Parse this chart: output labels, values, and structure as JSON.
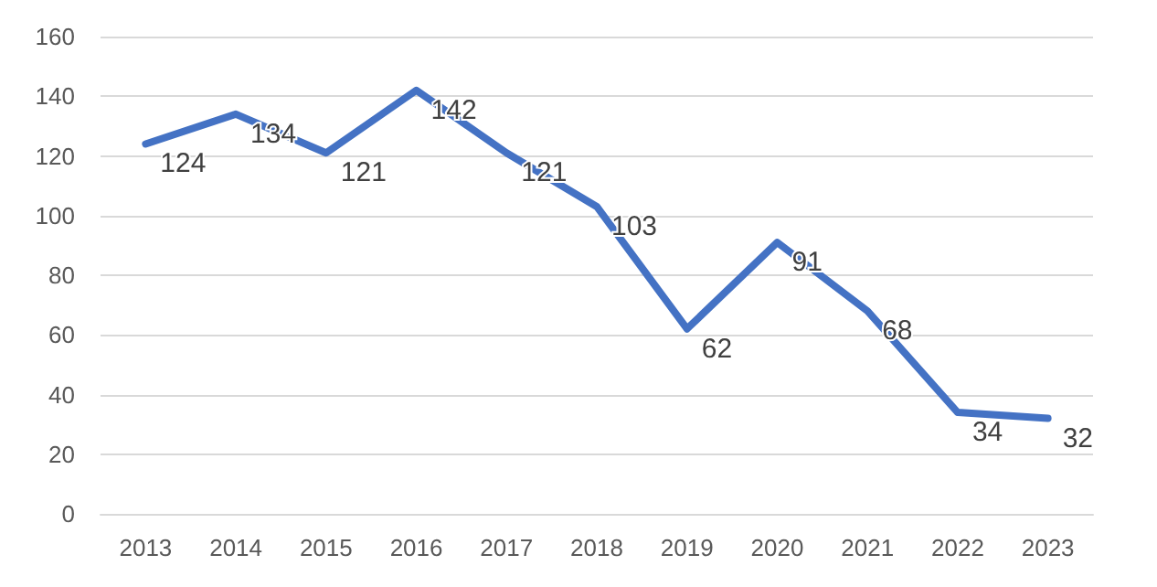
{
  "chart_data": {
    "type": "line",
    "categories": [
      "2013",
      "2014",
      "2015",
      "2016",
      "2017",
      "2018",
      "2019",
      "2020",
      "2021",
      "2022",
      "2023"
    ],
    "series": [
      {
        "color": "#4472c4",
        "values": [
          124,
          134,
          121,
          142,
          121,
          103,
          62,
          91,
          68,
          34,
          32
        ]
      }
    ],
    "ylim": [
      0,
      160
    ],
    "yticks": [
      0,
      20,
      40,
      60,
      80,
      100,
      120,
      140,
      160
    ],
    "grid": "y",
    "marker": "none",
    "line_style": "solid",
    "data_labels": true
  }
}
